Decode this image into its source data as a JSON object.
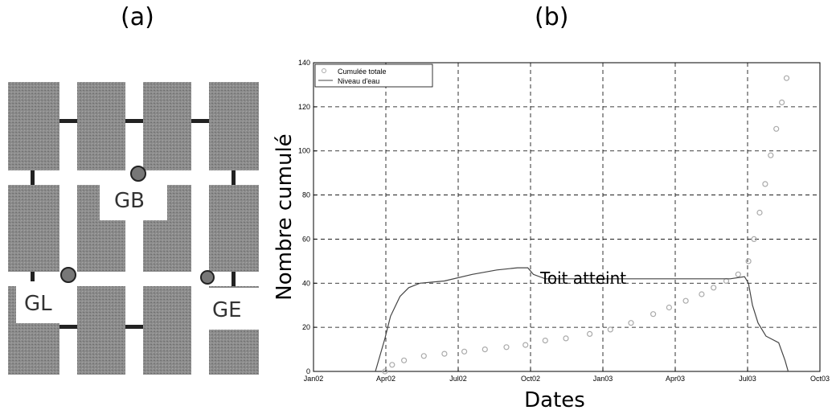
{
  "panels": {
    "a_label": "(a)",
    "b_label": "(b)"
  },
  "diagram": {
    "gauges": [
      {
        "label": "GB"
      },
      {
        "label": "GL"
      },
      {
        "label": "GE"
      }
    ],
    "colors": {
      "pillar": "#8a8a8a",
      "beam": "#222222",
      "gauge": "#777777"
    }
  },
  "chart_data": {
    "type": "line",
    "title": "",
    "xlabel": "Dates",
    "ylabel": "Nombre cumulé",
    "xlim": [
      "2002-01-01",
      "2003-10-01"
    ],
    "ylim": [
      0,
      140
    ],
    "x_ticks": [
      "Jan02",
      "Apr02",
      "Jul02",
      "Oct02",
      "Jan03",
      "Apr03",
      "Jul03",
      "Oct03"
    ],
    "y_ticks": [
      "0",
      "20",
      "40",
      "60",
      "80",
      "100",
      "120",
      "140"
    ],
    "grid": true,
    "legend": {
      "position": "top-left"
    },
    "annotations": [
      {
        "text": "Toit atteint"
      }
    ],
    "series": [
      {
        "name": "Cumulée totale",
        "style": "scatter",
        "color": "#aaaaaa",
        "points": [
          [
            "2002-04-01",
            0
          ],
          [
            "2002-04-10",
            3
          ],
          [
            "2002-04-25",
            5
          ],
          [
            "2002-05-20",
            7
          ],
          [
            "2002-06-15",
            8
          ],
          [
            "2002-07-10",
            9
          ],
          [
            "2002-08-05",
            10
          ],
          [
            "2002-09-01",
            11
          ],
          [
            "2002-09-25",
            12
          ],
          [
            "2002-10-20",
            14
          ],
          [
            "2002-11-15",
            15
          ],
          [
            "2002-12-15",
            17
          ],
          [
            "2003-01-10",
            19
          ],
          [
            "2003-02-05",
            22
          ],
          [
            "2003-03-05",
            26
          ],
          [
            "2003-03-25",
            29
          ],
          [
            "2003-04-15",
            32
          ],
          [
            "2003-05-05",
            35
          ],
          [
            "2003-05-20",
            38
          ],
          [
            "2003-06-05",
            41
          ],
          [
            "2003-06-20",
            44
          ],
          [
            "2003-07-03",
            50
          ],
          [
            "2003-07-10",
            60
          ],
          [
            "2003-07-17",
            72
          ],
          [
            "2003-07-24",
            85
          ],
          [
            "2003-07-31",
            98
          ],
          [
            "2003-08-07",
            110
          ],
          [
            "2003-08-14",
            122
          ],
          [
            "2003-08-20",
            133
          ]
        ]
      },
      {
        "name": "Niveau d'eau",
        "style": "line",
        "color": "#444444",
        "points": [
          [
            "2002-03-20",
            0
          ],
          [
            "2002-04-01",
            15
          ],
          [
            "2002-04-08",
            25
          ],
          [
            "2002-04-20",
            34
          ],
          [
            "2002-05-01",
            38
          ],
          [
            "2002-05-15",
            40
          ],
          [
            "2002-06-15",
            41
          ],
          [
            "2002-07-20",
            44
          ],
          [
            "2002-08-20",
            46
          ],
          [
            "2002-09-15",
            47
          ],
          [
            "2002-09-28",
            47
          ],
          [
            "2002-10-05",
            44
          ],
          [
            "2002-10-20",
            42
          ],
          [
            "2003-01-01",
            42
          ],
          [
            "2003-04-01",
            42
          ],
          [
            "2003-06-10",
            42
          ],
          [
            "2003-06-28",
            43
          ],
          [
            "2003-07-03",
            40
          ],
          [
            "2003-07-08",
            30
          ],
          [
            "2003-07-15",
            22
          ],
          [
            "2003-07-25",
            16
          ],
          [
            "2003-08-10",
            13
          ],
          [
            "2003-08-18",
            5
          ],
          [
            "2003-08-22",
            0
          ]
        ]
      }
    ]
  }
}
